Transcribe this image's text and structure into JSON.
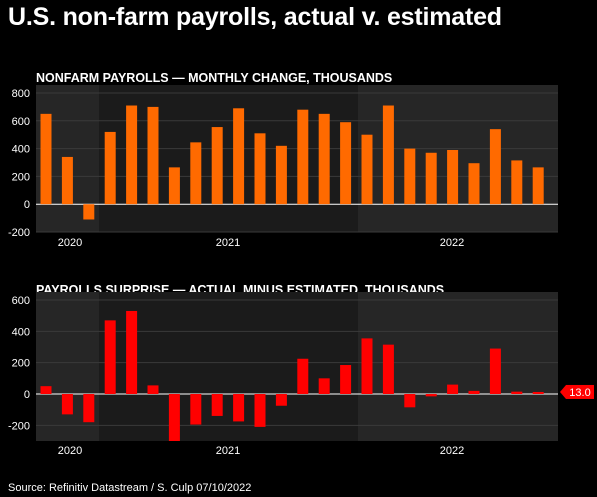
{
  "title": "U.S. non-farm payrolls, actual v. estimated",
  "source": "Source: Refinitiv Datastream / S. Culp 07/10/2022",
  "colors": {
    "background": "#000000",
    "panel": "#1b1b1b",
    "shade": "#262626",
    "grid": "#3a3a3a",
    "payrolls_bar": "#ff6a00",
    "surprise_bar": "#ff0000"
  },
  "chart_data": [
    {
      "type": "bar",
      "title": "NONFARM PAYROLLS — MONTHLY CHANGE, THOUSANDS",
      "xlabel": "",
      "ylabel": "",
      "ylim": [
        -200,
        800
      ],
      "yticks": [
        -200,
        0,
        200,
        400,
        600,
        800
      ],
      "ytick_labels": [
        "-200",
        "0",
        "200",
        "400",
        "600",
        "800"
      ],
      "x_year_labels": [
        "2020",
        "2021",
        "2022"
      ],
      "color": "#ff6a00",
      "grid": true,
      "series": [
        {
          "values": [
            650,
            340,
            -110,
            520,
            710,
            700,
            265,
            445,
            555,
            690,
            510,
            420,
            680,
            650,
            590,
            500,
            710,
            400,
            370,
            390,
            295,
            540,
            315,
            265
          ]
        }
      ]
    },
    {
      "type": "bar",
      "title": "PAYROLLS SURPRISE — ACTUAL MINUS ESTIMATED, THOUSANDS",
      "xlabel": "",
      "ylabel": "",
      "ylim": [
        -300,
        600
      ],
      "yticks": [
        -200,
        0,
        200,
        400,
        600
      ],
      "ytick_labels": [
        "-200",
        "0",
        "200",
        "400",
        "600"
      ],
      "x_year_labels": [
        "2020",
        "2021",
        "2022"
      ],
      "color": "#ff0000",
      "grid": true,
      "last_value_label": "13.0",
      "series": [
        {
          "values": [
            50,
            -130,
            -180,
            470,
            530,
            55,
            -300,
            -195,
            -140,
            -175,
            -210,
            -75,
            225,
            100,
            185,
            355,
            315,
            -85,
            -15,
            60,
            20,
            290,
            15,
            13
          ]
        }
      ]
    }
  ]
}
